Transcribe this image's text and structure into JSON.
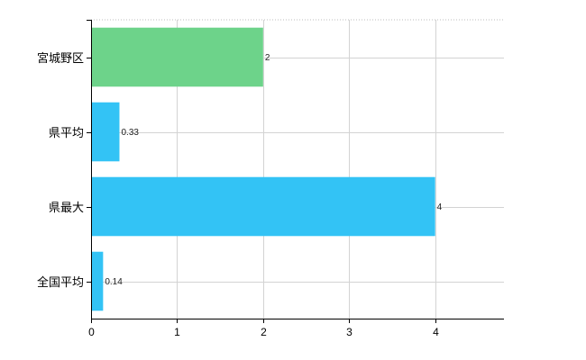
{
  "chart_data": {
    "type": "bar",
    "orientation": "horizontal",
    "categories": [
      "宮城野区",
      "県平均",
      "県最大",
      "全国平均"
    ],
    "values": [
      2,
      0.33,
      4,
      0.14
    ],
    "value_labels": [
      "2",
      "0.33",
      "4",
      "0.14"
    ],
    "bar_colors": [
      "#6dd38a",
      "#33c3f5",
      "#33c3f5",
      "#33c3f5"
    ],
    "xlim": [
      0,
      4.8
    ],
    "xticks": [
      0,
      1,
      2,
      3,
      4
    ],
    "xtick_labels": [
      "0",
      "1",
      "2",
      "3",
      "4"
    ],
    "grid": true,
    "title": "",
    "xlabel": "",
    "ylabel": ""
  }
}
